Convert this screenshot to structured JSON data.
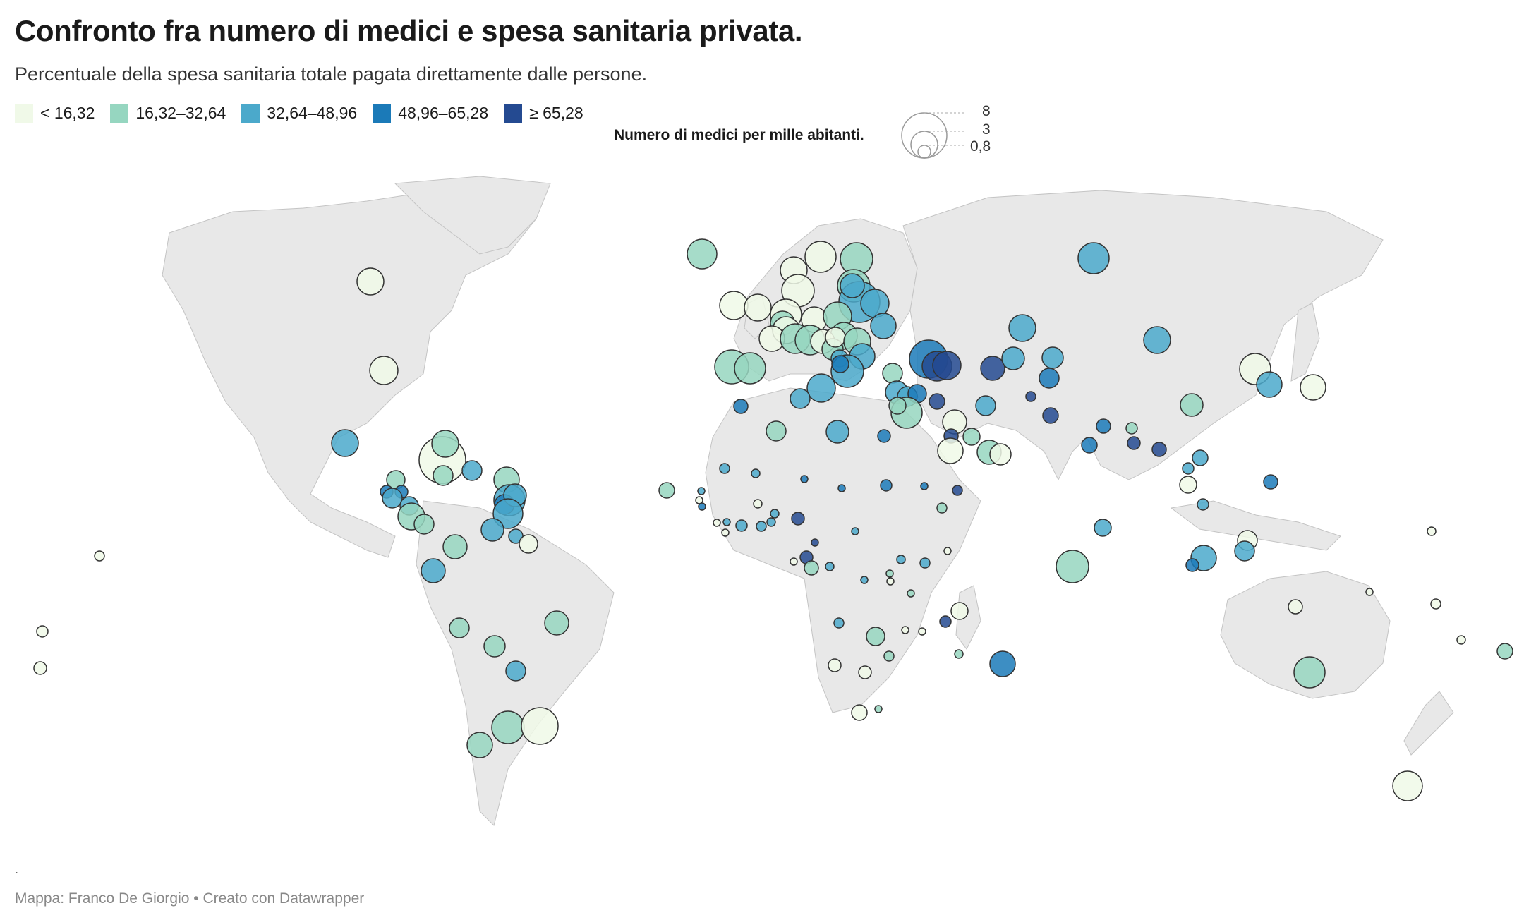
{
  "title": "Confronto fra numero di medici e spesa sanitaria privata.",
  "subtitle": "Percentuale della spesa sanitaria totale pagata direttamente dalle persone.",
  "legend": {
    "items": [
      {
        "label": "< 16,32",
        "color": "#f0f9e8"
      },
      {
        "label": "16,32–32,64",
        "color": "#96d6c0"
      },
      {
        "label": "32,64–48,96",
        "color": "#4ba9cb"
      },
      {
        "label": "48,96–65,28",
        "color": "#1b7ab8"
      },
      {
        "label": "≥ 65,28",
        "color": "#244a91"
      }
    ]
  },
  "size_legend": {
    "title": "Numero di medici per mille abitanti.",
    "values": [
      "8",
      "3",
      "0,8"
    ]
  },
  "map": {
    "land_color": "#e8e8e8",
    "border_color": "#b8b8b8",
    "bubble_stroke": "#333333"
  },
  "footnote": ".",
  "footer": "Mappa: Franco De Giorgio • Creato con Datawrapper"
}
